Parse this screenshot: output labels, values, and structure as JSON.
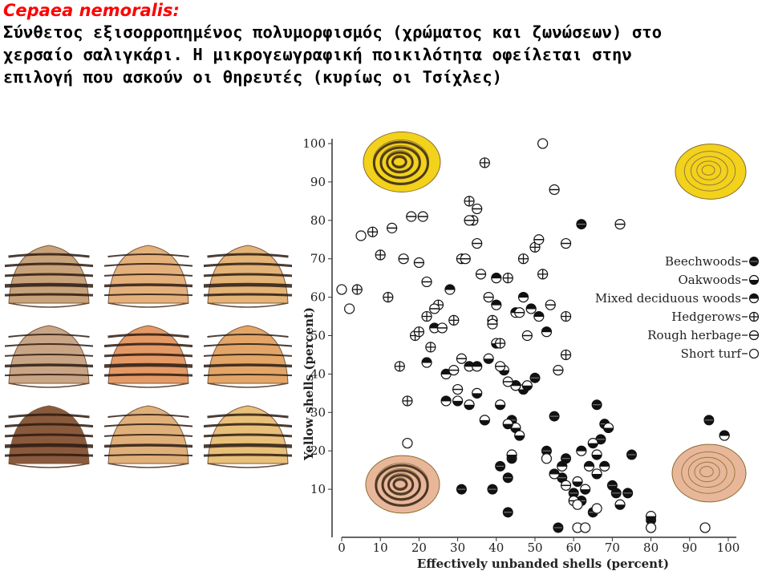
{
  "header": {
    "species": "Cepaea nemoralis:",
    "description": "Σύνθετος εξισορροπημένος πολυμορφισμός (χρώματος και ζωνώσεων) στο χερσαίο σαλιγκάρι. Η μικρογεωγραφική ποικιλότητα οφείλεται στην επιλογή που ασκούν οι θηρευτές (κυρίως οι Τσίχλες)"
  },
  "colors": {
    "species_text": "#ff0000",
    "yellow_shell": "#f2d21b",
    "pink_shell": "#e8b79a",
    "band": "#2a1a10"
  },
  "shell_grid": {
    "rows": 3,
    "cols": 3,
    "tints": [
      "#c8a27a",
      "#e4b07c",
      "#e3b377",
      "#c9a586",
      "#e49a66",
      "#e3a668",
      "#8a5a3c",
      "#e0b07a",
      "#e8c07a"
    ]
  },
  "icons": [
    "yellow-banded-shell-icon",
    "yellow-unbanded-shell-icon",
    "pink-banded-shell-icon",
    "pink-unbanded-shell-icon"
  ],
  "chart_data": {
    "type": "scatter",
    "xlabel": "Effectively unbanded shells (percent)",
    "ylabel": "Yellow shells (percent)",
    "xlim": [
      0,
      100
    ],
    "ylim": [
      0,
      100
    ],
    "xticks": [
      "0",
      "10",
      "20",
      "30",
      "40",
      "50",
      "60",
      "70",
      "80",
      "90",
      "100"
    ],
    "yticks": [
      "10",
      "20",
      "30",
      "40",
      "50",
      "60",
      "70",
      "80",
      "90",
      "100"
    ],
    "legend_position": "right",
    "series": [
      {
        "name": "Beechwoods",
        "marker": "beech",
        "points": [
          [
            31,
            10
          ],
          [
            39,
            10
          ],
          [
            43,
            13
          ],
          [
            44,
            18
          ],
          [
            41,
            16
          ],
          [
            44,
            28
          ],
          [
            37,
            28
          ],
          [
            50,
            39
          ],
          [
            55,
            29
          ],
          [
            53,
            20
          ],
          [
            57,
            13
          ],
          [
            58,
            18
          ],
          [
            60,
            9
          ],
          [
            62,
            7
          ],
          [
            65,
            4
          ],
          [
            68,
            27
          ],
          [
            66,
            32
          ],
          [
            67,
            23
          ],
          [
            71,
            9
          ],
          [
            70,
            11
          ],
          [
            74,
            9
          ],
          [
            75,
            19
          ],
          [
            80,
            2
          ],
          [
            62,
            79
          ],
          [
            95,
            28
          ],
          [
            99,
            24
          ],
          [
            43,
            4
          ],
          [
            56,
            0
          ]
        ]
      },
      {
        "name": "Oakwoods",
        "marker": "oak",
        "points": [
          [
            30,
            33
          ],
          [
            37,
            28
          ],
          [
            45,
            26
          ],
          [
            46,
            24
          ],
          [
            47,
            36
          ],
          [
            45,
            37
          ],
          [
            42,
            41
          ],
          [
            41,
            32
          ],
          [
            33,
            32
          ],
          [
            35,
            35
          ],
          [
            44,
            19
          ],
          [
            48,
            37
          ],
          [
            38,
            44
          ],
          [
            40,
            48
          ],
          [
            61,
            12
          ],
          [
            63,
            10
          ],
          [
            66,
            19
          ],
          [
            66,
            14
          ],
          [
            69,
            26
          ],
          [
            72,
            6
          ],
          [
            80,
            3
          ],
          [
            43,
            27
          ],
          [
            65,
            22
          ]
        ]
      },
      {
        "name": "Mixed deciduous woods",
        "marker": "mixed",
        "points": [
          [
            22,
            43
          ],
          [
            27,
            33
          ],
          [
            27,
            40
          ],
          [
            24,
            52
          ],
          [
            28,
            62
          ],
          [
            33,
            42
          ],
          [
            35,
            42
          ],
          [
            40,
            58
          ],
          [
            40,
            65
          ],
          [
            45,
            56
          ],
          [
            47,
            60
          ],
          [
            45,
            37
          ],
          [
            49,
            57
          ],
          [
            51,
            55
          ],
          [
            53,
            51
          ],
          [
            55,
            14
          ],
          [
            57,
            16
          ],
          [
            62,
            20
          ],
          [
            64,
            16
          ],
          [
            68,
            16
          ],
          [
            99,
            24
          ]
        ]
      },
      {
        "name": "Hedgerows",
        "marker": "hedge",
        "points": [
          [
            4,
            62
          ],
          [
            8,
            77
          ],
          [
            10,
            71
          ],
          [
            12,
            60
          ],
          [
            15,
            42
          ],
          [
            17,
            33
          ],
          [
            19,
            50
          ],
          [
            20,
            51
          ],
          [
            22,
            55
          ],
          [
            23,
            47
          ],
          [
            25,
            58
          ],
          [
            29,
            54
          ],
          [
            31,
            70
          ],
          [
            33,
            85
          ],
          [
            34,
            80
          ],
          [
            37,
            95
          ],
          [
            39,
            54
          ],
          [
            41,
            48
          ],
          [
            43,
            65
          ],
          [
            47,
            70
          ],
          [
            52,
            66
          ],
          [
            58,
            45
          ],
          [
            58,
            55
          ],
          [
            50,
            73
          ]
        ]
      },
      {
        "name": "Rough herbage",
        "marker": "rough",
        "points": [
          [
            13,
            78
          ],
          [
            16,
            70
          ],
          [
            18,
            81
          ],
          [
            20,
            69
          ],
          [
            21,
            81
          ],
          [
            22,
            64
          ],
          [
            24,
            57
          ],
          [
            26,
            52
          ],
          [
            29,
            41
          ],
          [
            30,
            36
          ],
          [
            31,
            44
          ],
          [
            32,
            70
          ],
          [
            33,
            80
          ],
          [
            35,
            83
          ],
          [
            35,
            74
          ],
          [
            36,
            66
          ],
          [
            38,
            60
          ],
          [
            39,
            53
          ],
          [
            41,
            42
          ],
          [
            43,
            38
          ],
          [
            46,
            56
          ],
          [
            48,
            50
          ],
          [
            51,
            75
          ],
          [
            54,
            58
          ],
          [
            56,
            41
          ],
          [
            58,
            11
          ],
          [
            60,
            7
          ],
          [
            55,
            88
          ],
          [
            58,
            74
          ],
          [
            72,
            79
          ]
        ]
      },
      {
        "name": "Short turf",
        "marker": "turf",
        "points": [
          [
            0,
            62
          ],
          [
            2,
            57
          ],
          [
            5,
            76
          ],
          [
            17,
            22
          ],
          [
            53,
            18
          ],
          [
            61,
            6
          ],
          [
            66,
            5
          ],
          [
            61,
            0
          ],
          [
            63,
            0
          ],
          [
            52,
            100
          ],
          [
            94,
            0
          ],
          [
            80,
            0
          ]
        ]
      }
    ]
  }
}
